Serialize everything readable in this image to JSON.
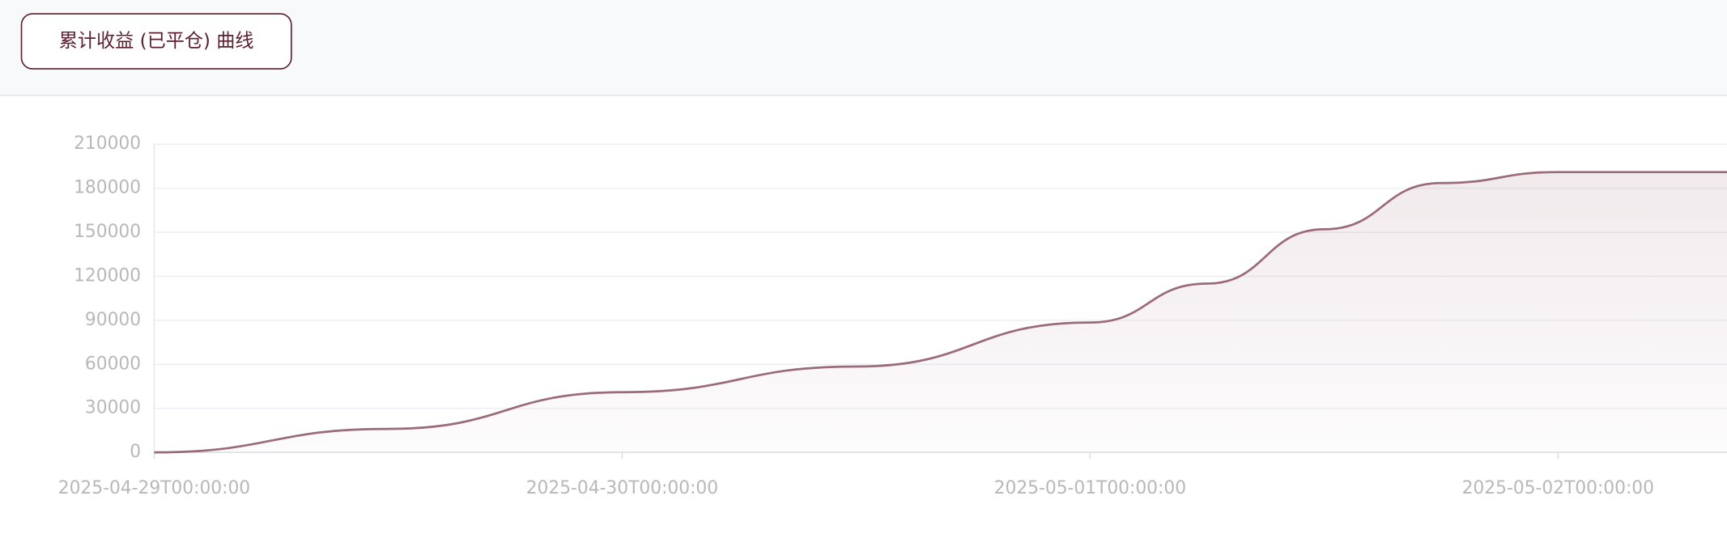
{
  "chart_data": {
    "type": "line",
    "title": "累计收益 (已平仓) 曲线",
    "x": [
      "2025-04-29T00:00:00",
      "2025-04-29T12:00:00",
      "2025-04-30T00:00:00",
      "2025-04-30T12:00:00",
      "2025-05-01T00:00:00",
      "2025-05-01T06:00:00",
      "2025-05-01T12:00:00",
      "2025-05-01T18:00:00",
      "2025-05-02T00:00:00",
      "2025-05-02T08:40:00"
    ],
    "values": [
      0,
      16000,
      41000,
      58500,
      88500,
      115000,
      152000,
      183500,
      191000,
      191000
    ],
    "color": "#9b6b79",
    "xlim": [
      "2025-04-29T00:00:00",
      "2025-05-02T08:40:00"
    ],
    "xticks": [
      "2025-04-29T00:00:00",
      "2025-04-30T00:00:00",
      "2025-05-01T00:00:00",
      "2025-05-02T00:00:00"
    ],
    "ylim": [
      0,
      210000
    ],
    "yticks": [
      0,
      30000,
      60000,
      90000,
      120000,
      150000,
      180000,
      210000
    ],
    "grid": true
  }
}
